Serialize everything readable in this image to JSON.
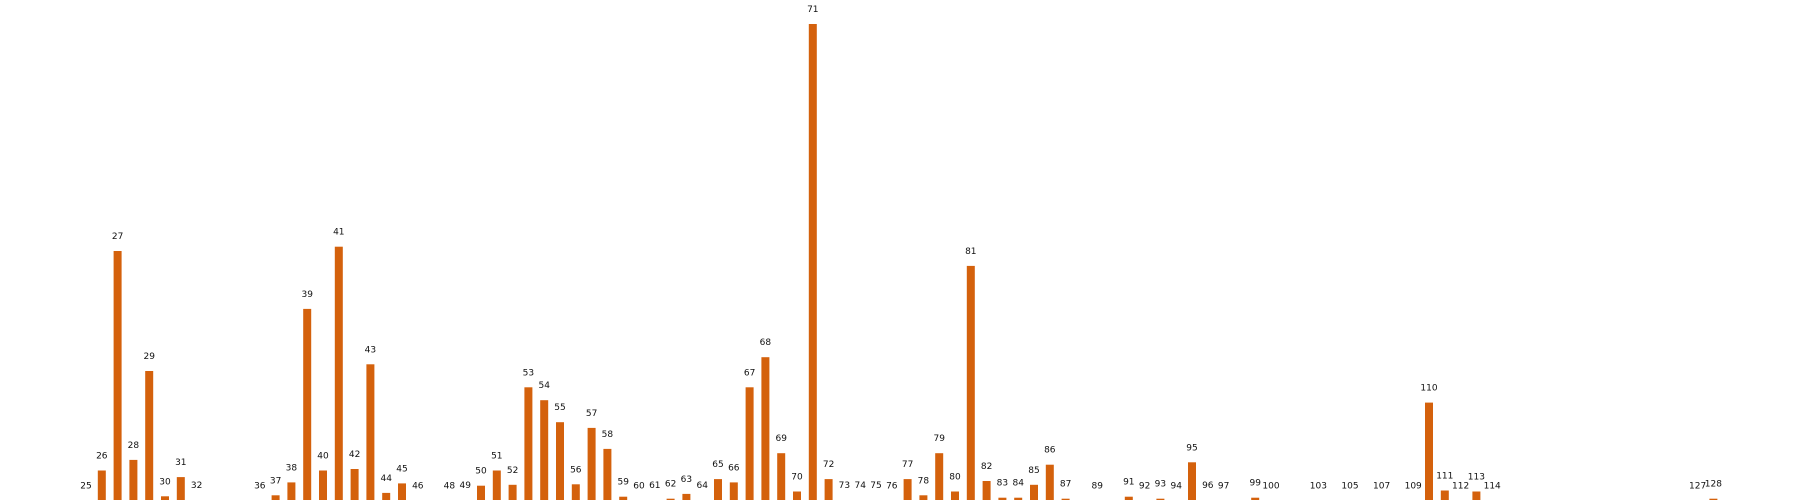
{
  "chart_data": {
    "type": "bar",
    "title": "",
    "xlabel": "",
    "ylabel": "",
    "axes_visible": false,
    "grid": false,
    "bar_color": "#d4610c",
    "ylim": [
      0,
      100
    ],
    "categories": [
      "25",
      "26",
      "27",
      "28",
      "29",
      "30",
      "31",
      "32",
      "36",
      "37",
      "38",
      "39",
      "40",
      "41",
      "42",
      "43",
      "44",
      "45",
      "46",
      "48",
      "49",
      "50",
      "51",
      "52",
      "53",
      "54",
      "55",
      "56",
      "57",
      "58",
      "59",
      "60",
      "61",
      "62",
      "63",
      "64",
      "65",
      "66",
      "67",
      "68",
      "69",
      "70",
      "71",
      "72",
      "73",
      "74",
      "75",
      "76",
      "77",
      "78",
      "79",
      "80",
      "81",
      "82",
      "83",
      "84",
      "85",
      "86",
      "87",
      "89",
      "91",
      "92",
      "93",
      "94",
      "95",
      "96",
      "97",
      "99",
      "100",
      "103",
      "105",
      "107",
      "109",
      "110",
      "111",
      "112",
      "113",
      "114",
      "127",
      "128"
    ],
    "x": [
      25,
      26,
      27,
      28,
      29,
      30,
      31,
      32,
      36,
      37,
      38,
      39,
      40,
      41,
      42,
      43,
      44,
      45,
      46,
      48,
      49,
      50,
      51,
      52,
      53,
      54,
      55,
      56,
      57,
      58,
      59,
      60,
      61,
      62,
      63,
      64,
      65,
      66,
      67,
      68,
      69,
      70,
      71,
      72,
      73,
      74,
      75,
      76,
      77,
      78,
      79,
      80,
      81,
      82,
      83,
      84,
      85,
      86,
      87,
      89,
      91,
      92,
      93,
      94,
      95,
      96,
      97,
      99,
      100,
      103,
      105,
      107,
      109,
      110,
      111,
      112,
      113,
      114,
      127,
      128
    ],
    "values": [
      0.2,
      6.6,
      52.5,
      8.8,
      27.4,
      1.2,
      5.2,
      0.4,
      0.2,
      1.4,
      4.1,
      40.4,
      6.6,
      53.4,
      6.9,
      28.8,
      1.9,
      3.9,
      0.2,
      0.2,
      0.4,
      3.4,
      6.6,
      3.6,
      24.0,
      21.3,
      16.7,
      3.7,
      15.5,
      11.1,
      1.1,
      0.2,
      0.4,
      0.7,
      1.7,
      0.4,
      4.8,
      4.1,
      24.0,
      30.3,
      10.2,
      2.2,
      100.0,
      4.8,
      0.4,
      0.4,
      0.4,
      0.2,
      4.8,
      1.4,
      10.2,
      2.2,
      49.4,
      4.4,
      0.9,
      0.9,
      3.6,
      7.8,
      0.7,
      0.2,
      1.1,
      0.2,
      0.7,
      0.2,
      8.3,
      0.4,
      0.2,
      0.9,
      0.2,
      0.2,
      0.2,
      0.2,
      0.2,
      20.8,
      2.4,
      0.2,
      2.2,
      0.2,
      0.2,
      0.7
    ]
  }
}
